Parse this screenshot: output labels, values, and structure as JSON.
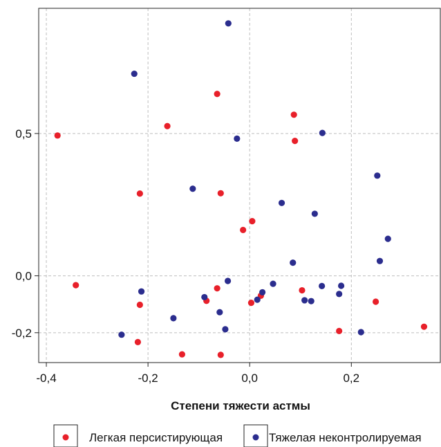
{
  "chart_data": {
    "type": "scatter",
    "title": "",
    "xlabel": "Степени тяжести астмы",
    "ylabel": "",
    "xlim": [
      -0.415,
      0.375
    ],
    "ylim": [
      -0.305,
      0.94
    ],
    "x_ticks": [
      {
        "value": -0.4,
        "label": "-0,4"
      },
      {
        "value": -0.2,
        "label": "-0,2"
      },
      {
        "value": 0.0,
        "label": "0,0"
      },
      {
        "value": 0.2,
        "label": "0,2"
      }
    ],
    "y_ticks": [
      {
        "value": 0.5,
        "label": "0,5"
      },
      {
        "value": 0.0,
        "label": "0,0"
      },
      {
        "value": -0.2,
        "label": "-0,2"
      }
    ],
    "grid": true,
    "legend_position": "bottom",
    "series": [
      {
        "name": "Легкая персистирующая",
        "color": "#e8202a",
        "points": [
          {
            "x": -0.378,
            "y": 0.493
          },
          {
            "x": -0.342,
            "y": -0.033
          },
          {
            "x": -0.216,
            "y": 0.289
          },
          {
            "x": -0.216,
            "y": -0.102
          },
          {
            "x": -0.22,
            "y": -0.233
          },
          {
            "x": -0.162,
            "y": 0.526
          },
          {
            "x": -0.133,
            "y": -0.276
          },
          {
            "x": -0.064,
            "y": 0.639
          },
          {
            "x": -0.057,
            "y": 0.29
          },
          {
            "x": -0.064,
            "y": -0.044
          },
          {
            "x": -0.085,
            "y": -0.088
          },
          {
            "x": -0.057,
            "y": -0.278
          },
          {
            "x": -0.013,
            "y": 0.161
          },
          {
            "x": 0.005,
            "y": 0.192
          },
          {
            "x": 0.022,
            "y": -0.07
          },
          {
            "x": 0.003,
            "y": -0.095
          },
          {
            "x": 0.087,
            "y": 0.566
          },
          {
            "x": 0.089,
            "y": 0.474
          },
          {
            "x": 0.103,
            "y": -0.051
          },
          {
            "x": 0.176,
            "y": -0.194
          },
          {
            "x": 0.248,
            "y": -0.091
          },
          {
            "x": 0.343,
            "y": -0.179
          }
        ]
      },
      {
        "name": "Тяжелая неконтролируемая",
        "color": "#2b2d8e",
        "points": [
          {
            "x": -0.042,
            "y": 0.887
          },
          {
            "x": -0.227,
            "y": 0.71
          },
          {
            "x": -0.025,
            "y": 0.482
          },
          {
            "x": 0.143,
            "y": 0.502
          },
          {
            "x": -0.112,
            "y": 0.306
          },
          {
            "x": 0.063,
            "y": 0.256
          },
          {
            "x": 0.128,
            "y": 0.218
          },
          {
            "x": 0.251,
            "y": 0.352
          },
          {
            "x": 0.272,
            "y": 0.13
          },
          {
            "x": 0.256,
            "y": 0.052
          },
          {
            "x": 0.085,
            "y": 0.046
          },
          {
            "x": -0.043,
            "y": -0.018
          },
          {
            "x": 0.046,
            "y": -0.028
          },
          {
            "x": 0.142,
            "y": -0.036
          },
          {
            "x": 0.18,
            "y": -0.035
          },
          {
            "x": -0.213,
            "y": -0.055
          },
          {
            "x": 0.025,
            "y": -0.058
          },
          {
            "x": 0.176,
            "y": -0.064
          },
          {
            "x": -0.089,
            "y": -0.075
          },
          {
            "x": 0.015,
            "y": -0.084
          },
          {
            "x": 0.108,
            "y": -0.086
          },
          {
            "x": 0.121,
            "y": -0.089
          },
          {
            "x": -0.059,
            "y": -0.128
          },
          {
            "x": -0.15,
            "y": -0.149
          },
          {
            "x": -0.048,
            "y": -0.188
          },
          {
            "x": -0.252,
            "y": -0.207
          },
          {
            "x": 0.219,
            "y": -0.198
          }
        ]
      }
    ]
  }
}
